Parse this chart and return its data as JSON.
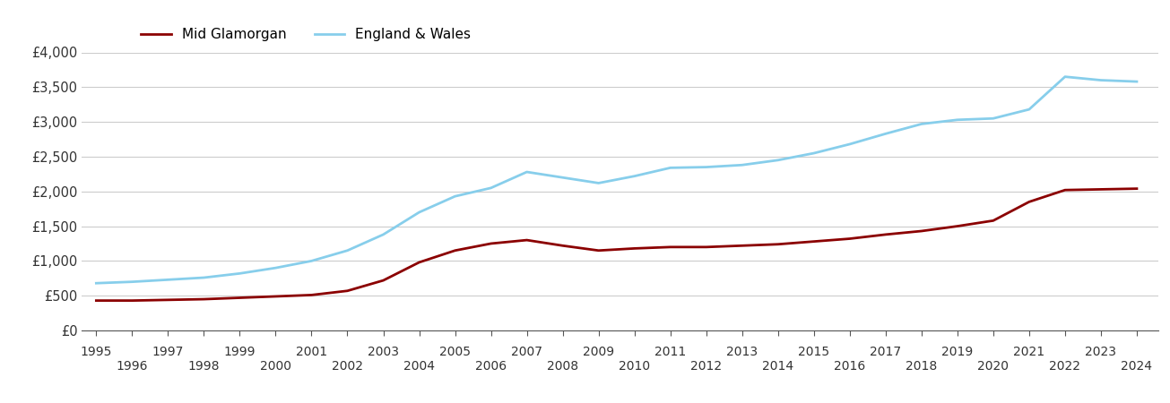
{
  "mid_glamorgan": {
    "years": [
      1995,
      1996,
      1997,
      1998,
      1999,
      2000,
      2001,
      2002,
      2003,
      2004,
      2005,
      2006,
      2007,
      2008,
      2009,
      2010,
      2011,
      2012,
      2013,
      2014,
      2015,
      2016,
      2017,
      2018,
      2019,
      2020,
      2021,
      2022,
      2023,
      2024
    ],
    "values": [
      430,
      430,
      440,
      450,
      470,
      490,
      510,
      570,
      720,
      980,
      1150,
      1250,
      1300,
      1220,
      1150,
      1180,
      1200,
      1200,
      1220,
      1240,
      1280,
      1320,
      1380,
      1430,
      1500,
      1580,
      1850,
      2020,
      2030,
      2040
    ],
    "color": "#8B0000",
    "label": "Mid Glamorgan"
  },
  "england_wales": {
    "years": [
      1995,
      1996,
      1997,
      1998,
      1999,
      2000,
      2001,
      2002,
      2003,
      2004,
      2005,
      2006,
      2007,
      2008,
      2009,
      2010,
      2011,
      2012,
      2013,
      2014,
      2015,
      2016,
      2017,
      2018,
      2019,
      2020,
      2021,
      2022,
      2023,
      2024
    ],
    "values": [
      680,
      700,
      730,
      760,
      820,
      900,
      1000,
      1150,
      1380,
      1700,
      1930,
      2050,
      2280,
      2200,
      2120,
      2220,
      2340,
      2350,
      2380,
      2450,
      2550,
      2680,
      2830,
      2970,
      3030,
      3050,
      3180,
      3650,
      3600,
      3580
    ],
    "color": "#87CEEB",
    "label": "England & Wales"
  },
  "ylim": [
    0,
    4000
  ],
  "yticks": [
    0,
    500,
    1000,
    1500,
    2000,
    2500,
    3000,
    3500,
    4000
  ],
  "ytick_labels": [
    "£0",
    "£500",
    "£1,000",
    "£1,500",
    "£2,000",
    "£2,500",
    "£3,000",
    "£3,500",
    "£4,000"
  ],
  "xlim_start": 1994.6,
  "xlim_end": 2024.6,
  "odd_years": [
    1995,
    1997,
    1999,
    2001,
    2003,
    2005,
    2007,
    2009,
    2011,
    2013,
    2015,
    2017,
    2019,
    2021,
    2023
  ],
  "even_years": [
    1996,
    1998,
    2000,
    2002,
    2004,
    2006,
    2008,
    2010,
    2012,
    2014,
    2016,
    2018,
    2020,
    2022,
    2024
  ],
  "line_width": 2.0,
  "background_color": "#ffffff",
  "grid_color": "#cccccc"
}
